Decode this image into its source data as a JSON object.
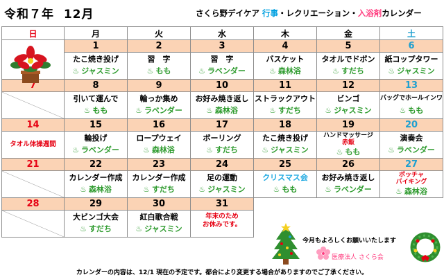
{
  "header": {
    "era": "令和７年",
    "month": "12月",
    "subtitle_pre": "さくら野デイケア",
    "subtitle_blue": "行事",
    "subtitle_mid": "・レクリエーション・",
    "subtitle_pink": "入浴剤",
    "subtitle_post": "カレンダー"
  },
  "weekdays": [
    "日",
    "月",
    "火",
    "水",
    "木",
    "金",
    "土"
  ],
  "weeks": [
    {
      "dates": [
        "",
        "1",
        "2",
        "3",
        "4",
        "5",
        "6"
      ],
      "activities": [
        "",
        "たこ焼き投げ",
        "習　字",
        "習　字",
        "バスケット",
        "タオルでドボン",
        "紙コップタワー"
      ],
      "baths": [
        "",
        "ジャスミン",
        "もも",
        "ラベンダー",
        "森林浴",
        "すだち",
        "ジャスミン"
      ]
    },
    {
      "dates": [
        "7",
        "8",
        "9",
        "10",
        "11",
        "12",
        "13"
      ],
      "activities": [
        "",
        "引いて運んで",
        "輪っか集め",
        "お好み焼き返し",
        "ストラックアウト",
        "ビンゴ",
        "バッグでホールインワン"
      ],
      "baths": [
        "",
        "もも",
        "ラベンダー",
        "森林浴",
        "すだち",
        "ジャスミン",
        "もも"
      ]
    },
    {
      "dates": [
        "14",
        "15",
        "16",
        "17",
        "18",
        "19",
        "20"
      ],
      "sunday_note": "タオル体操週間",
      "activities": [
        "",
        "輪投げ",
        "ロープウェイ",
        "ボーリング",
        "たこ焼き投げ",
        "ハンドマッサージ",
        "演奏会"
      ],
      "activity_sub_19": "赤飯",
      "baths": [
        "",
        "ラベンダー",
        "森林浴",
        "すだち",
        "ジャスミン",
        "もも",
        "ラベンダー"
      ]
    },
    {
      "dates": [
        "21",
        "22",
        "23",
        "24",
        "25",
        "26",
        "27"
      ],
      "activities": [
        "",
        "カレンダー作成",
        "カレンダー作成",
        "足の運動",
        "クリスマス会",
        "お好み焼き返し",
        "ボッチャ"
      ],
      "activity_sub_27": "バイキング",
      "baths": [
        "",
        "森林浴",
        "すだち",
        "ジャスミン",
        "もも",
        "ラベンダー",
        "森林浴"
      ]
    },
    {
      "dates": [
        "28",
        "29",
        "30",
        "31"
      ],
      "activities": [
        "",
        "大ビンゴ大会",
        "紅白歌合戦"
      ],
      "end_note_line1": "年末のため",
      "end_note_line2": "お休みです。",
      "baths": [
        "",
        "すだち",
        "ジャスミン"
      ]
    }
  ],
  "message": "今月もよろしくお願いいたします",
  "organization": "医療法人 さくら会",
  "footer": "カレンダーの内容は、12/1 現在の予定です。都合により変更する場合がありますのでご了承ください。",
  "icons": {
    "bath": "bath-steam-icon",
    "decoration_left": "poinsettia-icon",
    "decoration_tree": "christmas-tree-icon",
    "decoration_wreath": "wreath-icon",
    "decoration_blossom": "cherry-blossom-icon"
  },
  "colors": {
    "date_row": "#fbd3b5",
    "sunday": "#e60012",
    "saturday": "#1fa0d0",
    "bath_green": "#2e9b2e",
    "accent_blue": "#00a0e0",
    "accent_pink": "#ff3d7f"
  }
}
